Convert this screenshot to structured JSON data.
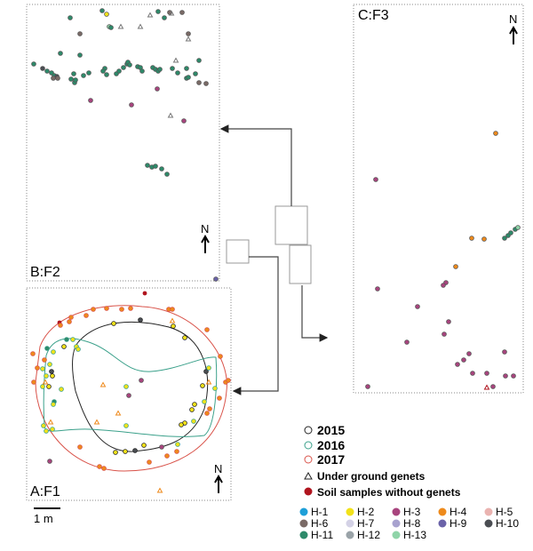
{
  "panels": {
    "A": {
      "label": "A:F1",
      "north": "N"
    },
    "B": {
      "label": "B:F2",
      "north": "N"
    },
    "C": {
      "label": "C:F3",
      "north": "N"
    }
  },
  "scale_bar": {
    "label": "1 m"
  },
  "legend": {
    "years": [
      {
        "label": "2015",
        "color": "#222222"
      },
      {
        "label": "2016",
        "color": "#3aa08a"
      },
      {
        "label": "2017",
        "color": "#d9534a"
      }
    ],
    "underground": "Under ground genets",
    "soil": "Soil samples without genets",
    "soil_color": "#b0141e",
    "haplotypes": [
      {
        "label": "H-1",
        "color": "#1e9fd8"
      },
      {
        "label": "H-2",
        "color": "#f2e21a"
      },
      {
        "label": "H-3",
        "color": "#a8447e"
      },
      {
        "label": "H-4",
        "color": "#ee8a1c"
      },
      {
        "label": "H-5",
        "color": "#eab3b0"
      },
      {
        "label": "H-6",
        "color": "#7a6a66"
      },
      {
        "label": "H-7",
        "color": "#d4d2e6"
      },
      {
        "label": "H-8",
        "color": "#a8a2cf"
      },
      {
        "label": "H-9",
        "color": "#6a62a8"
      },
      {
        "label": "H-10",
        "color": "#4a4d52"
      },
      {
        "label": "H-11",
        "color": "#2e8a6a"
      },
      {
        "label": "H-12",
        "color": "#9aa3a8"
      },
      {
        "label": "H-13",
        "color": "#8fd4a8"
      }
    ]
  }
}
